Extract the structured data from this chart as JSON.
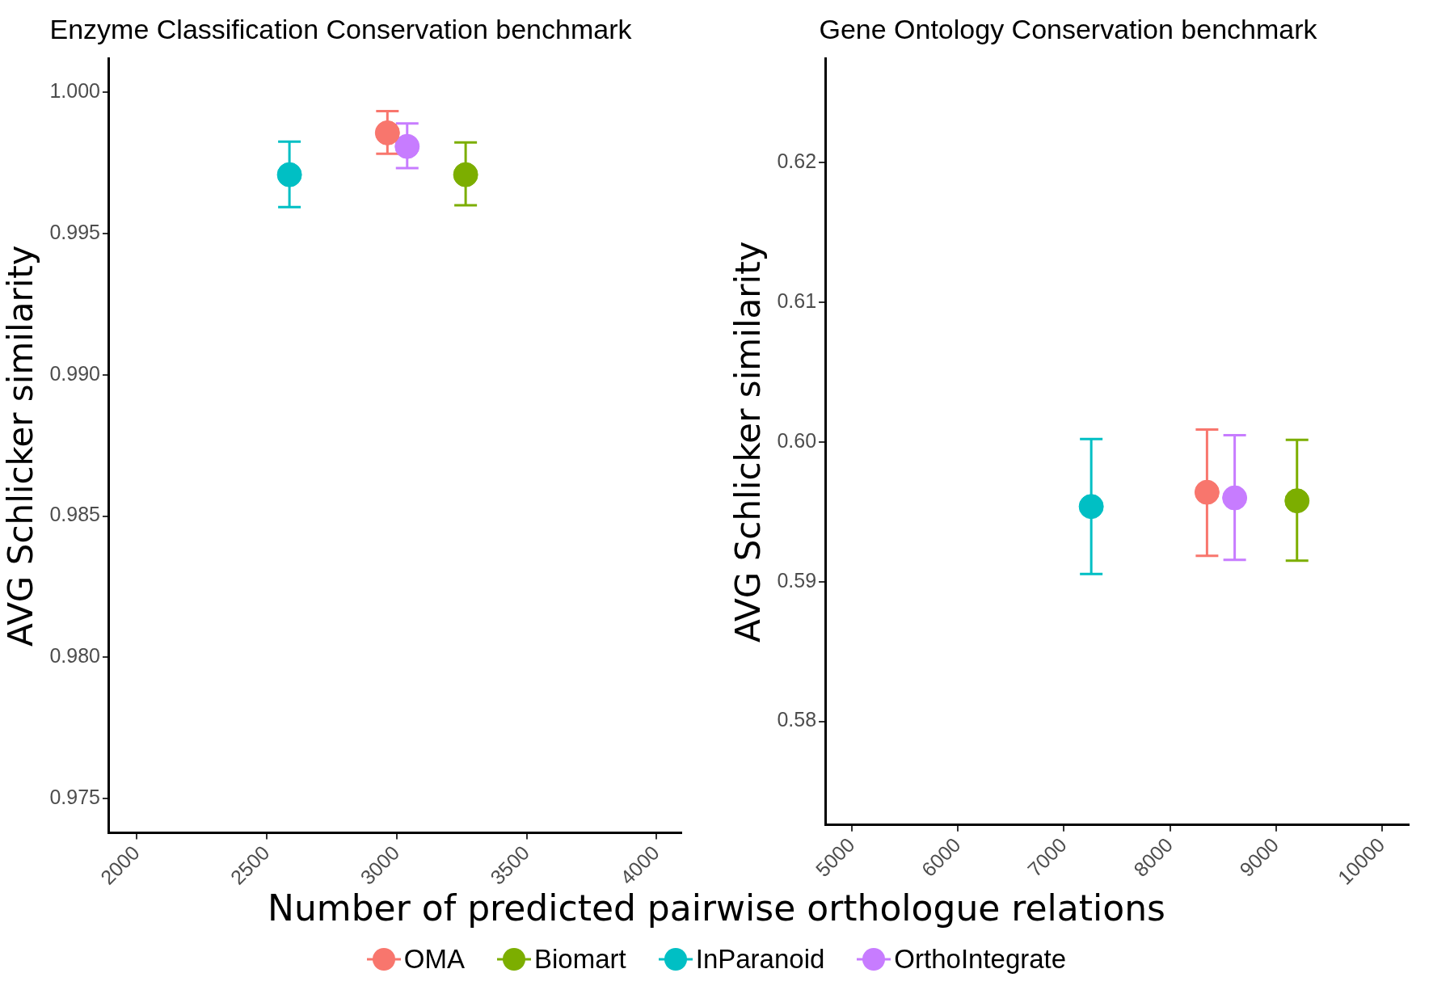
{
  "chart_data": [
    {
      "type": "scatter",
      "title": "Enzyme Classification Conservation benchmark",
      "ylabel": "AVG Schlicker similarity",
      "xlabel": "Number of predicted pairwise orthologue relations",
      "legend": "bottom",
      "marker": "circle",
      "grid": false,
      "xlim": [
        1893,
        4095
      ],
      "xticks": [
        2000,
        2500,
        3000,
        3500,
        4000
      ],
      "ylim": [
        0.97379,
        1.00118
      ],
      "yticks": [
        {
          "value": 1,
          "label": "1.000"
        },
        0.995,
        {
          "value": 0.99,
          "label": "0.990"
        },
        0.985,
        {
          "value": 0.98,
          "label": "0.980"
        },
        0.975
      ],
      "series": [
        {
          "name": "OMA",
          "color": "#f8766d",
          "x": [
            2964
          ],
          "values": [
            0.99856
          ],
          "errors": [
            [
              0.99782,
              0.99933
            ]
          ]
        },
        {
          "name": "Biomart",
          "color": "#7cae00",
          "x": [
            3265
          ],
          "values": [
            0.99708
          ],
          "errors": [
            [
              0.996,
              0.99822
            ]
          ]
        },
        {
          "name": "InParanoid",
          "color": "#00bfc4",
          "x": [
            2587
          ],
          "values": [
            0.99708
          ],
          "errors": [
            [
              0.99593,
              0.99825
            ]
          ]
        },
        {
          "name": "OrthoIntegrate",
          "color": "#c77cff",
          "x": [
            3040
          ],
          "values": [
            0.99808
          ],
          "errors": [
            [
              0.99731,
              0.99889
            ]
          ]
        }
      ]
    },
    {
      "type": "scatter",
      "title": "Gene Ontology Conservation benchmark",
      "ylabel": "AVG Schlicker similarity",
      "marker": "circle",
      "grid": false,
      "xlim": [
        4748,
        10252
      ],
      "xticks": [
        5000,
        6000,
        7000,
        8000,
        9000,
        10000
      ],
      "ylim": [
        0.57259,
        0.62741
      ],
      "yticks": [
        0.62,
        0.61,
        {
          "value": 0.6,
          "label": "0.60"
        },
        0.59,
        0.58
      ],
      "series": [
        {
          "name": "OMA",
          "color": "#f8766d",
          "x": [
            8349
          ],
          "values": [
            0.59639
          ],
          "errors": [
            [
              0.59184,
              0.60088
            ]
          ]
        },
        {
          "name": "Biomart",
          "color": "#7cae00",
          "x": [
            9198
          ],
          "values": [
            0.59578
          ],
          "errors": [
            [
              0.5915,
              0.60014
            ]
          ]
        },
        {
          "name": "InParanoid",
          "color": "#00bfc4",
          "x": [
            7257
          ],
          "values": [
            0.59537
          ],
          "errors": [
            [
              0.59054,
              0.6002
            ]
          ]
        },
        {
          "name": "OrthoIntegrate",
          "color": "#c77cff",
          "x": [
            8610
          ],
          "values": [
            0.59599
          ],
          "errors": [
            [
              0.59156,
              0.60048
            ]
          ]
        }
      ]
    }
  ]
}
